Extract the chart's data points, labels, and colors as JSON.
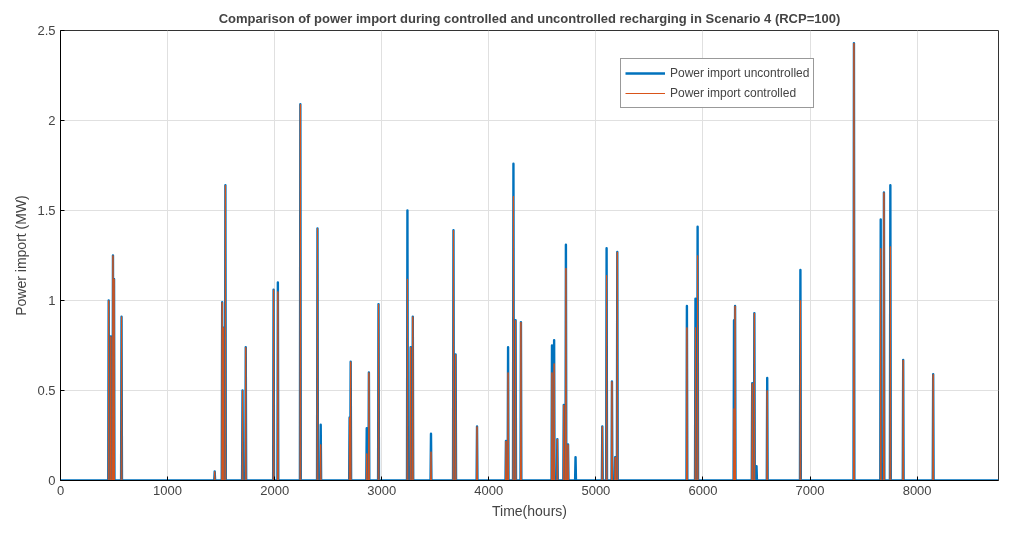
{
  "chart_data": {
    "type": "line",
    "title": "Comparison of power import during controlled and uncontrolled recharging in Scenario 4 (RCP=100)",
    "xlabel": "Time(hours)",
    "ylabel": "Power import (MW)",
    "x": [
      0,
      446,
      450,
      454,
      466,
      470,
      474,
      486,
      490,
      494,
      496,
      500,
      504,
      566,
      570,
      574,
      1436,
      1440,
      1444,
      1506,
      1510,
      1514,
      1516,
      1520,
      1524,
      1536,
      1540,
      1544,
      1696,
      1700,
      1704,
      1726,
      1730,
      1734,
      1986,
      1990,
      1994,
      2026,
      2030,
      2034,
      2236,
      2240,
      2244,
      2396,
      2400,
      2404,
      2426,
      2430,
      2434,
      2696,
      2700,
      2704,
      2706,
      2710,
      2714,
      2856,
      2860,
      2864,
      2876,
      2880,
      2884,
      2966,
      2970,
      2974,
      3236,
      3240,
      3244,
      3266,
      3270,
      3274,
      3286,
      3290,
      3294,
      3456,
      3460,
      3464,
      3666,
      3670,
      3674,
      3686,
      3690,
      3694,
      3886,
      3890,
      3894,
      4156,
      4160,
      4164,
      4176,
      4180,
      4184,
      4226,
      4230,
      4234,
      4246,
      4250,
      4254,
      4296,
      4300,
      4304,
      4586,
      4590,
      4594,
      4606,
      4610,
      4614,
      4636,
      4640,
      4644,
      4696,
      4700,
      4704,
      4716,
      4720,
      4724,
      4736,
      4740,
      4744,
      4806,
      4810,
      4814,
      5056,
      5060,
      5064,
      5096,
      5100,
      5104,
      5146,
      5150,
      5154,
      5176,
      5180,
      5184,
      5196,
      5200,
      5204,
      5846,
      5850,
      5854,
      5926,
      5930,
      5934,
      5946,
      5950,
      5954,
      6286,
      6290,
      6294,
      6296,
      6300,
      6304,
      6456,
      6460,
      6464,
      6476,
      6480,
      6484,
      6496,
      6500,
      6504,
      6596,
      6600,
      6604,
      6906,
      6910,
      6914,
      7406,
      7410,
      7414,
      7656,
      7660,
      7664,
      7686,
      7690,
      7694,
      7746,
      7750,
      7754,
      7866,
      7870,
      7874,
      8146,
      8150,
      8154,
      8760
    ],
    "series": [
      {
        "name": "Power import uncontrolled",
        "color": "#0072bd",
        "values": [
          0,
          0,
          1.0,
          0,
          0,
          0.8,
          0,
          0,
          1.25,
          0,
          0,
          1.12,
          0,
          0,
          0.91,
          0,
          0,
          0.05,
          0,
          0,
          0.99,
          0,
          0,
          0.85,
          0,
          0,
          1.64,
          0,
          0,
          0.5,
          0,
          0,
          0.74,
          0,
          0,
          1.06,
          0,
          0,
          1.1,
          0,
          0,
          2.09,
          0,
          0,
          1.4,
          0,
          0,
          0.31,
          0,
          0,
          0.35,
          0,
          0,
          0.66,
          0,
          0,
          0.29,
          0,
          0,
          0.6,
          0,
          0,
          0.98,
          0,
          0,
          1.5,
          0,
          0,
          0.74,
          0,
          0,
          0.91,
          0,
          0,
          0.26,
          0,
          0,
          1.39,
          0,
          0,
          0.7,
          0,
          0,
          0.3,
          0,
          0,
          0.22,
          0,
          0,
          0.74,
          0,
          0,
          1.76,
          0,
          0,
          0.89,
          0,
          0,
          0.88,
          0,
          0,
          0.75,
          0,
          0,
          0.78,
          0,
          0,
          0.23,
          0,
          0,
          0.42,
          0,
          0,
          1.31,
          0,
          0,
          0.2,
          0,
          0,
          0.13,
          0,
          0,
          0.3,
          0,
          0,
          1.29,
          0,
          0,
          0.55,
          0,
          0,
          0.13,
          0,
          0,
          1.27,
          0,
          0,
          0.97,
          0,
          0,
          1.01,
          0,
          0,
          1.41,
          0,
          0,
          0.89,
          0,
          0,
          0.97,
          0,
          0,
          0.54,
          0,
          0,
          0.93,
          0,
          0,
          0.08,
          0,
          0,
          0.57,
          0,
          0,
          1.17,
          0,
          0,
          2.43,
          0,
          0,
          1.45,
          0,
          0,
          1.6,
          0,
          0,
          1.64,
          0,
          0,
          0.67,
          0,
          0,
          0.59,
          0,
          0
        ]
      },
      {
        "name": "Power import controlled",
        "color": "#d95319",
        "values": [
          0,
          0,
          1.0,
          0,
          0,
          0.8,
          0,
          0,
          1.25,
          0,
          0,
          1.12,
          0,
          0,
          0.91,
          0,
          0,
          0.05,
          0,
          0,
          0.99,
          0,
          0,
          0.85,
          0,
          0,
          1.64,
          0,
          0,
          0.5,
          0,
          0,
          0.74,
          0,
          0,
          1.06,
          0,
          0,
          1.05,
          0,
          0,
          2.09,
          0,
          0,
          1.4,
          0,
          0,
          0.2,
          0,
          0,
          0.35,
          0,
          0,
          0.66,
          0,
          0,
          0.15,
          0,
          0,
          0.6,
          0,
          0,
          0.98,
          0,
          0,
          1.12,
          0,
          0,
          0.74,
          0,
          0,
          0.91,
          0,
          0,
          0.16,
          0,
          0,
          1.39,
          0,
          0,
          0.7,
          0,
          0,
          0.3,
          0,
          0,
          0.22,
          0,
          0,
          0.6,
          0,
          0,
          1.58,
          0,
          0,
          0.89,
          0,
          0,
          0.88,
          0,
          0,
          0.6,
          0,
          0,
          0.65,
          0,
          0,
          0.23,
          0,
          0,
          0.42,
          0,
          0,
          1.18,
          0,
          0,
          0.2,
          0,
          0,
          0,
          0,
          0,
          0.3,
          0,
          0,
          1.14,
          0,
          0,
          0.55,
          0,
          0,
          0.13,
          0,
          0,
          1.27,
          0,
          0,
          0.85,
          0,
          0,
          0.85,
          0,
          0,
          1.25,
          0,
          0,
          0.4,
          0,
          0,
          0.97,
          0,
          0,
          0.54,
          0,
          0,
          0.93,
          0,
          0,
          0,
          0,
          0,
          0.5,
          0,
          0,
          1.0,
          0,
          0,
          2.43,
          0,
          0,
          1.29,
          0,
          0,
          1.6,
          0,
          0,
          1.3,
          0,
          0,
          0.67,
          0,
          0,
          0.59,
          0,
          0
        ]
      }
    ],
    "xlim": [
      0,
      8760
    ],
    "xticks": [
      0,
      1000,
      2000,
      3000,
      4000,
      5000,
      6000,
      7000,
      8000
    ],
    "ylim": [
      0,
      2.5
    ],
    "yticks": [
      0,
      0.5,
      1,
      1.5,
      2,
      2.5
    ],
    "grid": true,
    "legend": "top right",
    "line_style": "solid",
    "marker": "none"
  }
}
